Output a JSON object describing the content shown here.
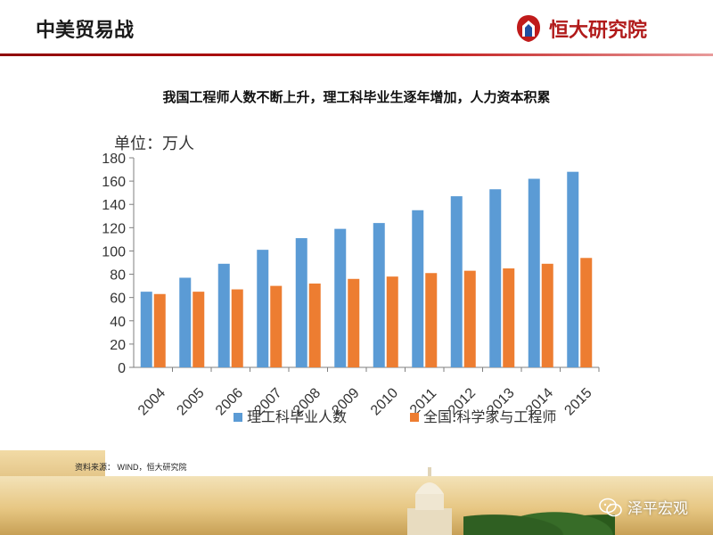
{
  "header": {
    "title": "中美贸易战",
    "brand": "恒大研究院",
    "brand_color": "#b11a1a"
  },
  "chart_title": "我国工程师人数不断上升，理工科毕业生逐年增加，人力资本积累",
  "unit_label": "单位：万人",
  "source": "资料来源： WIND，恒大研究院",
  "watermark": "泽平宏观",
  "chart_data": {
    "type": "bar",
    "categories": [
      "2004",
      "2005",
      "2006",
      "2007",
      "2008",
      "2009",
      "2010",
      "2011",
      "2012",
      "2013",
      "2014",
      "2015"
    ],
    "series": [
      {
        "name": "理工科毕业人数",
        "color": "#5b9bd5",
        "values": [
          65,
          77,
          89,
          101,
          111,
          119,
          124,
          135,
          147,
          153,
          162,
          168
        ]
      },
      {
        "name": "全国:科学家与工程师",
        "color": "#ed7d31",
        "values": [
          63,
          65,
          67,
          70,
          72,
          76,
          78,
          81,
          83,
          85,
          89,
          94
        ]
      }
    ],
    "ylim": [
      0,
      180
    ],
    "yticks": [
      0,
      20,
      40,
      60,
      80,
      100,
      120,
      140,
      160,
      180
    ],
    "legend_position": "bottom",
    "grid": false
  }
}
